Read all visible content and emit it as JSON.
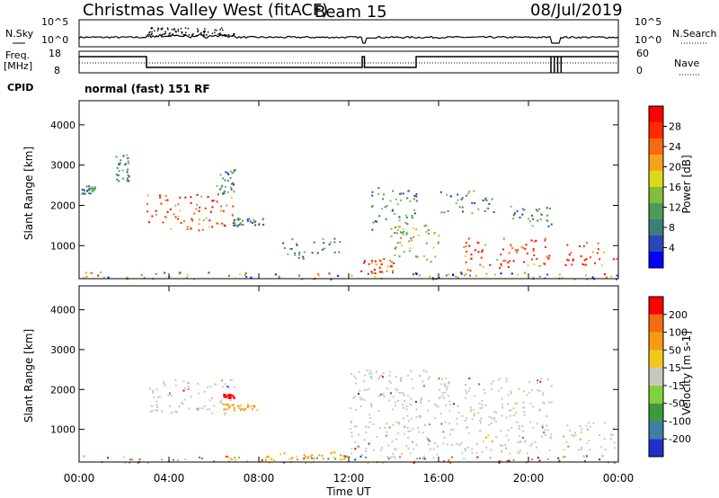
{
  "header": {
    "station": "Christmas Valley West (fitACF)",
    "beam": "Beam 15",
    "date": "08/Jul/2019"
  },
  "top_panels": {
    "nsky_label": "N.Sky",
    "nsky_ticks": [
      "10^5",
      "10^0"
    ],
    "nsearch_label": "N.Search",
    "nsearch_ticks": [
      "10^5",
      "10^0"
    ],
    "freq_label": "Freq.",
    "freq_unit": "[MHz]",
    "freq_ticks": [
      "18",
      "8"
    ],
    "nave_label": "Nave",
    "nave_ticks": [
      "60",
      "0"
    ],
    "cpid_label": "CPID",
    "cpid_text": "normal (fast) 151 RF"
  },
  "chart_data": [
    {
      "type": "heatmap",
      "name": "power-panel",
      "ylabel": "Slant Range [km]",
      "yticks": [
        "1000",
        "2000",
        "3000",
        "4000"
      ],
      "ylim": [
        180,
        4600
      ],
      "xlim": [
        0,
        24
      ],
      "colorbar": {
        "label": "Power [dB]",
        "ticks": [
          "28",
          "24",
          "20",
          "16",
          "12",
          "8",
          "4"
        ],
        "colors": [
          "#0000ff",
          "#2a46b8",
          "#3c7f7a",
          "#4f9a5a",
          "#7fbf3c",
          "#d9d91a",
          "#f7a21a",
          "#f76a12",
          "#ff2a00",
          "#ff0000"
        ]
      },
      "regions": [
        {
          "t0": 0.0,
          "t1": 24.0,
          "r0": 180,
          "r1": 360,
          "value": "mixed"
        },
        {
          "t0": 0.1,
          "t1": 0.7,
          "r0": 2300,
          "r1": 2500,
          "value": "weak"
        },
        {
          "t0": 1.6,
          "t1": 2.2,
          "r0": 2600,
          "r1": 3300,
          "value": "weak"
        },
        {
          "t0": 3.0,
          "t1": 6.9,
          "r0": 1400,
          "r1": 2300,
          "value": "strong"
        },
        {
          "t0": 6.1,
          "t1": 6.9,
          "r0": 2300,
          "r1": 2900,
          "value": "weak"
        },
        {
          "t0": 6.8,
          "t1": 8.2,
          "r0": 1500,
          "r1": 1700,
          "value": "weak"
        },
        {
          "t0": 9.0,
          "t1": 11.6,
          "r0": 700,
          "r1": 1200,
          "value": "weak"
        },
        {
          "t0": 12.4,
          "t1": 14.0,
          "r0": 300,
          "r1": 700,
          "value": "strong"
        },
        {
          "t0": 13.0,
          "t1": 15.0,
          "r0": 1200,
          "r1": 2500,
          "value": "weak"
        },
        {
          "t0": 14.0,
          "t1": 16.0,
          "r0": 600,
          "r1": 1600,
          "value": "medium"
        },
        {
          "t0": 16.0,
          "t1": 18.5,
          "r0": 1800,
          "r1": 2400,
          "value": "weak"
        },
        {
          "t0": 17.0,
          "t1": 21.0,
          "r0": 400,
          "r1": 1200,
          "value": "strong"
        },
        {
          "t0": 19.0,
          "t1": 21.0,
          "r0": 1500,
          "r1": 2000,
          "value": "weak"
        },
        {
          "t0": 21.6,
          "t1": 23.9,
          "r0": 500,
          "r1": 1100,
          "value": "strong"
        }
      ]
    },
    {
      "type": "heatmap",
      "name": "velocity-panel",
      "ylabel": "Slant Range [km]",
      "yticks": [
        "1000",
        "2000",
        "3000",
        "4000"
      ],
      "ylim": [
        180,
        4600
      ],
      "xlim": [
        0,
        24
      ],
      "xlabel": "Time UT",
      "xticks": [
        "00:00",
        "04:00",
        "08:00",
        "12:00",
        "16:00",
        "20:00",
        "00:00"
      ],
      "colorbar": {
        "label": "Velocity [m s-1]",
        "ticks": [
          "200",
          "100",
          "50",
          "15",
          "-15",
          "-50",
          "-100",
          "-200"
        ],
        "colors": [
          "#2030c8",
          "#3f7fa0",
          "#3c9a3c",
          "#7fd23c",
          "#c8c8c0",
          "#f2c81a",
          "#f79a12",
          "#f76a12",
          "#ff0000"
        ]
      },
      "regions": [
        {
          "t0": 0.0,
          "t1": 24.0,
          "r0": 180,
          "r1": 360,
          "value": "mixed"
        },
        {
          "t0": 3.0,
          "t1": 6.9,
          "r0": 1400,
          "r1": 2300,
          "value": "gray"
        },
        {
          "t0": 6.4,
          "t1": 6.9,
          "r0": 1800,
          "r1": 1900,
          "value": "red"
        },
        {
          "t0": 6.4,
          "t1": 8.0,
          "r0": 1500,
          "r1": 1650,
          "value": "orange"
        },
        {
          "t0": 8.0,
          "t1": 12.0,
          "r0": 200,
          "r1": 450,
          "value": "orange"
        },
        {
          "t0": 12.0,
          "t1": 16.0,
          "r0": 300,
          "r1": 2500,
          "value": "gray"
        },
        {
          "t0": 16.0,
          "t1": 21.0,
          "r0": 400,
          "r1": 2300,
          "value": "gray"
        },
        {
          "t0": 21.5,
          "t1": 23.9,
          "r0": 500,
          "r1": 1200,
          "value": "gray"
        }
      ]
    }
  ]
}
